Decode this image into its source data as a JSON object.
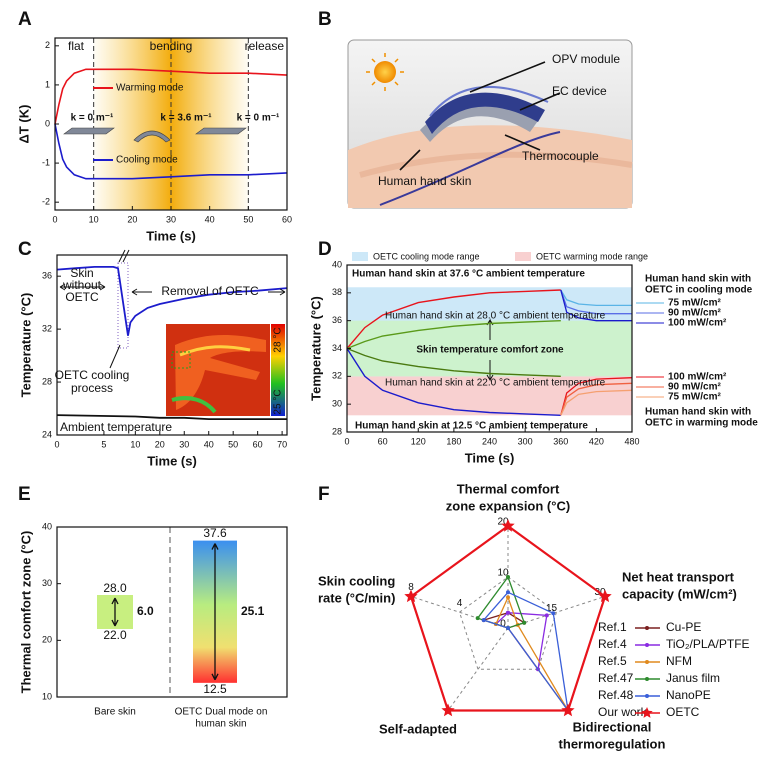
{
  "chart_data": [
    {
      "type": "line",
      "label": "A",
      "xlabel": "Time (s)",
      "ylabel": "ΔT (K)",
      "xlim": [
        0,
        60
      ],
      "xticks": [
        0,
        10,
        20,
        30,
        40,
        50,
        60
      ],
      "ylim": [
        -2.2,
        2.2
      ],
      "yticks": [
        -2,
        -1,
        0,
        1,
        2
      ],
      "phases": [
        "flat",
        "bending",
        "release"
      ],
      "phase_bounds": [
        10,
        30,
        50
      ],
      "curvatures": [
        "k = 0 m⁻¹",
        "k = 3.6 m⁻¹",
        "k = 0 m⁻¹"
      ],
      "series": [
        {
          "name": "Warming mode",
          "color": "#e8141c",
          "x": [
            0,
            1,
            2,
            3,
            5,
            8,
            10,
            20,
            30,
            40,
            50,
            60
          ],
          "values": [
            0,
            0.5,
            0.9,
            1.1,
            1.3,
            1.4,
            1.4,
            1.4,
            1.35,
            1.3,
            1.3,
            1.25
          ]
        },
        {
          "name": "Cooling mode",
          "color": "#1c1ccc",
          "x": [
            0,
            1,
            2,
            3,
            5,
            8,
            10,
            20,
            30,
            40,
            50,
            60
          ],
          "values": [
            0,
            -0.5,
            -0.9,
            -1.1,
            -1.3,
            -1.4,
            -1.4,
            -1.4,
            -1.35,
            -1.3,
            -1.3,
            -1.25
          ]
        }
      ]
    },
    {
      "type": "illustration",
      "label": "B",
      "labels": [
        "OPV module",
        "EC device",
        "Thermocouple",
        "Human hand skin"
      ]
    },
    {
      "type": "line",
      "label": "C",
      "xlabel": "Time (s)",
      "ylabel": "Temperature (°C)",
      "xlim": [
        0,
        72
      ],
      "xbreak": [
        6.5,
        7
      ],
      "xticks": [
        0,
        5,
        10,
        20,
        30,
        40,
        50,
        60,
        70
      ],
      "ylim": [
        24,
        37.6
      ],
      "yticks": [
        24,
        28,
        32,
        36
      ],
      "annotations": [
        [
          "Skin",
          "without",
          "OETC"
        ],
        [
          "Removal of OETC"
        ],
        [
          "OETC cooling",
          "process"
        ],
        [
          "Ambient temperature"
        ]
      ],
      "scale_labels": [
        "28 °C",
        "25 °C"
      ],
      "series": [
        {
          "color": "#1c1ccc",
          "x": [
            0,
            2,
            4,
            6,
            6.5,
            7,
            8,
            10,
            15,
            20,
            30,
            40,
            50,
            60,
            72
          ],
          "values": [
            36.5,
            36.6,
            36.7,
            36.7,
            36.6,
            31.5,
            32.5,
            33,
            33.6,
            33.9,
            34.3,
            34.6,
            34.8,
            34.9,
            35.1
          ]
        },
        {
          "color": "#111111",
          "x": [
            0,
            10,
            20,
            30,
            40,
            50,
            60,
            72
          ],
          "values": [
            25.5,
            25.4,
            25.3,
            25.3,
            25.2,
            25.2,
            25.2,
            25.2
          ]
        }
      ]
    },
    {
      "type": "line",
      "label": "D",
      "xlabel": "Time (s)",
      "ylabel": "Temperature (°C)",
      "xlim": [
        0,
        480
      ],
      "xticks": [
        0,
        60,
        120,
        180,
        240,
        300,
        360,
        420,
        480
      ],
      "ylim": [
        28,
        40
      ],
      "yticks": [
        28,
        30,
        32,
        34,
        36,
        38,
        40
      ],
      "bands": [
        {
          "name": "OETC cooling mode range",
          "color": "#cde8f8",
          "range": [
            32,
            38.4
          ]
        },
        {
          "name": "OETC warming mode range",
          "color": "#f8d0d0",
          "range": [
            29.2,
            32
          ]
        },
        {
          "name": "Skin temperature comfort zone",
          "color": "#cdf2cd",
          "range": [
            32,
            36
          ]
        }
      ],
      "side_notes": [
        [
          "Human hand skin with",
          "OETC in cooling mode"
        ],
        [
          "Human hand skin with",
          "OETC in warming mode"
        ]
      ],
      "series": [
        {
          "name": "Human hand skin at 37.6 °C ambient temperature",
          "color": "#e8141c",
          "x": [
            0,
            30,
            60,
            120,
            180,
            240,
            300,
            360
          ],
          "values": [
            34,
            35.5,
            36.4,
            37.3,
            37.7,
            38,
            38.1,
            38.2
          ]
        },
        {
          "name": "Human hand skin at 28.0 °C ambient temperature",
          "color": "#5a9a1a",
          "x": [
            0,
            30,
            60,
            120,
            180,
            240,
            300,
            360
          ],
          "values": [
            34,
            34.5,
            34.9,
            35.3,
            35.6,
            35.8,
            35.9,
            36
          ]
        },
        {
          "name": "Human hand skin at 22.0 °C ambient temperature",
          "color": "#4a7a10",
          "x": [
            0,
            30,
            60,
            120,
            180,
            240,
            300,
            360
          ],
          "values": [
            34,
            33.5,
            33.1,
            32.7,
            32.4,
            32.2,
            32.1,
            32
          ]
        },
        {
          "name": "Human hand skin at 12.5 °C ambient temperature",
          "color": "#1c1ccc",
          "x": [
            0,
            30,
            60,
            120,
            180,
            240,
            300,
            360
          ],
          "values": [
            34,
            32,
            31,
            30.1,
            29.6,
            29.4,
            29.3,
            29.2
          ]
        },
        {
          "name": "75 mW/cm²",
          "color": "#5ab4e6",
          "x": [
            360,
            370,
            390,
            420,
            480
          ],
          "values": [
            38.2,
            37.5,
            37.2,
            37.1,
            37.1
          ]
        },
        {
          "name": "90 mW/cm²",
          "color": "#5a6ee6",
          "x": [
            360,
            370,
            390,
            420,
            480
          ],
          "values": [
            38.2,
            37,
            36.7,
            36.5,
            36.5
          ]
        },
        {
          "name": "100 mW/cm²",
          "color": "#1a1acc",
          "x": [
            360,
            370,
            390,
            420,
            480
          ],
          "values": [
            38.2,
            36.6,
            36.2,
            36,
            36
          ]
        },
        {
          "name": "100 mW/cm²",
          "color": "#e8141c",
          "x": [
            360,
            370,
            390,
            420,
            480
          ],
          "values": [
            29.2,
            30.8,
            31.5,
            31.8,
            31.9
          ]
        },
        {
          "name": "90 mW/cm²",
          "color": "#f06040",
          "x": [
            360,
            370,
            390,
            420,
            480
          ],
          "values": [
            29.2,
            30.5,
            31.1,
            31.4,
            31.5
          ]
        },
        {
          "name": "75 mW/cm²",
          "color": "#f5a070",
          "x": [
            360,
            370,
            390,
            420,
            480
          ],
          "values": [
            29.2,
            30.1,
            30.7,
            30.9,
            31
          ]
        }
      ]
    },
    {
      "type": "range",
      "label": "E",
      "ylabel": "Thermal comfort zone (°C)",
      "ylim": [
        10,
        40
      ],
      "yticks": [
        10,
        20,
        30,
        40
      ],
      "categories": [
        [
          "Bare skin"
        ],
        [
          "OETC Dual mode on",
          "human skin"
        ]
      ],
      "low": [
        22,
        12.5
      ],
      "low_labels": [
        "22.0",
        "12.5"
      ],
      "high": [
        28,
        37.6
      ],
      "high_labels": [
        "28.0",
        "37.6"
      ],
      "range": [
        6,
        25.1
      ],
      "range_labels": [
        "6.0",
        "25.1"
      ]
    },
    {
      "type": "radar",
      "label": "F",
      "axes": [
        {
          "name": [
            "Thermal comfort",
            "zone expansion (°C)"
          ],
          "lim": [
            0,
            20
          ],
          "ticks": [
            0,
            10,
            20
          ]
        },
        {
          "name": [
            "Net heat transport",
            "capacity (mW/cm²)"
          ],
          "lim": [
            0,
            30
          ],
          "ticks": [
            15,
            30
          ]
        },
        {
          "name": [
            "Bidirectional",
            "thermoregulation"
          ],
          "lim": [
            0,
            1
          ],
          "ticks": []
        },
        {
          "name": [
            "Self-adapted"
          ],
          "lim": [
            0,
            1
          ],
          "ticks": []
        },
        {
          "name": [
            "Skin cooling",
            "rate (°C/min)"
          ],
          "lim": [
            0,
            8
          ],
          "ticks": [
            4,
            8
          ]
        }
      ],
      "series": [
        {
          "ref": "Ref.1",
          "name": "Cu-PE",
          "color": "#7b2020",
          "marker": "circle",
          "values": [
            3,
            5,
            0,
            0,
            2
          ]
        },
        {
          "ref": "Ref.4",
          "name": "TiO₂/PLA/PTFE",
          "color": "#8a2be2",
          "marker": "circle",
          "values": [
            3,
            12,
            0.5,
            0,
            1
          ]
        },
        {
          "ref": "Ref.5",
          "name": "NFM",
          "color": "#e08a1e",
          "marker": "circle",
          "values": [
            6,
            3,
            1,
            0,
            1
          ]
        },
        {
          "ref": "Ref.47",
          "name": "Janus film",
          "color": "#2e8b2e",
          "marker": "circle",
          "values": [
            10,
            5,
            0,
            0,
            2.5
          ]
        },
        {
          "ref": "Ref.48",
          "name": "NanoPE",
          "color": "#3a5fd8",
          "marker": "circle",
          "values": [
            7,
            14,
            1,
            0,
            2
          ]
        },
        {
          "ref": "Our work",
          "name": "OETC",
          "color": "#e8141c",
          "marker": "star",
          "values": [
            20,
            30,
            1,
            1,
            8
          ]
        }
      ]
    }
  ]
}
